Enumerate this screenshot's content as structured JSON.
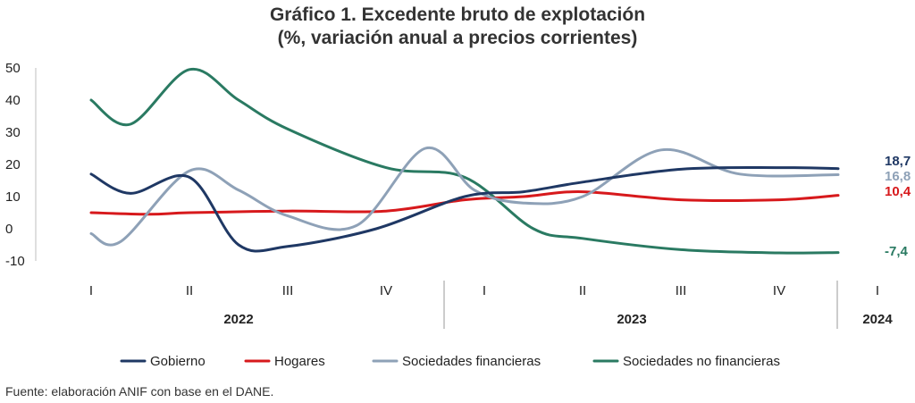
{
  "chart_data": {
    "type": "line",
    "title": "Gráfico 1. Excedente bruto de explotación",
    "subtitle": "(%, variación anual a precios corrientes)",
    "ylim": [
      -10,
      50
    ],
    "yticks": [
      50,
      40,
      30,
      20,
      10,
      0,
      -10
    ],
    "grid": false,
    "legend_position": "bottom",
    "categories": [
      "I",
      "II",
      "III",
      "IV",
      "I",
      "II",
      "III",
      "IV",
      "I"
    ],
    "years": [
      {
        "label": "2022",
        "quarters": 4
      },
      {
        "label": "2023",
        "quarters": 4
      },
      {
        "label": "2024",
        "quarters": 1
      }
    ],
    "series": [
      {
        "name": "Gobierno",
        "color": "#1f3864",
        "points": [
          [
            0.0,
            17
          ],
          [
            0.4,
            11
          ],
          [
            1.0,
            16
          ],
          [
            1.5,
            -5
          ],
          [
            2.0,
            -5.5
          ],
          [
            2.9,
            0
          ],
          [
            3.8,
            10
          ],
          [
            4.4,
            11.5
          ],
          [
            5.0,
            14.5
          ],
          [
            6.0,
            18.5
          ],
          [
            7.0,
            19
          ],
          [
            7.6,
            18.7
          ]
        ],
        "end_label": "18,7"
      },
      {
        "name": "Hogares",
        "color": "#d7191c",
        "points": [
          [
            0.0,
            5
          ],
          [
            0.6,
            4.5
          ],
          [
            1.0,
            5
          ],
          [
            2.0,
            5.5
          ],
          [
            3.0,
            5.5
          ],
          [
            3.8,
            9
          ],
          [
            4.4,
            10
          ],
          [
            5.0,
            11.5
          ],
          [
            6.0,
            9
          ],
          [
            7.0,
            9
          ],
          [
            7.6,
            10.4
          ]
        ],
        "end_label": "10,4"
      },
      {
        "name": "Sociedades financieras",
        "color": "#8ea1b7",
        "points": [
          [
            0.0,
            -1.5
          ],
          [
            0.3,
            -4
          ],
          [
            1.0,
            18
          ],
          [
            1.5,
            12
          ],
          [
            2.0,
            4
          ],
          [
            2.7,
            1
          ],
          [
            3.4,
            25
          ],
          [
            3.9,
            12
          ],
          [
            4.4,
            8
          ],
          [
            5.0,
            10
          ],
          [
            5.8,
            24.5
          ],
          [
            6.6,
            17
          ],
          [
            7.6,
            16.8
          ]
        ],
        "end_label": "16,8"
      },
      {
        "name": "Sociedades no financieras",
        "color": "#2a7a62",
        "points": [
          [
            0.0,
            40
          ],
          [
            0.4,
            32.5
          ],
          [
            1.0,
            49.5
          ],
          [
            1.5,
            40
          ],
          [
            2.0,
            31
          ],
          [
            3.0,
            19
          ],
          [
            3.8,
            16
          ],
          [
            4.5,
            0
          ],
          [
            5.0,
            -3
          ],
          [
            6.0,
            -6.5
          ],
          [
            7.0,
            -7.5
          ],
          [
            7.6,
            -7.4
          ]
        ],
        "end_label": "-7,4"
      }
    ]
  },
  "footer": {
    "source": "Fuente: elaboración ANIF con base en el DANE."
  }
}
